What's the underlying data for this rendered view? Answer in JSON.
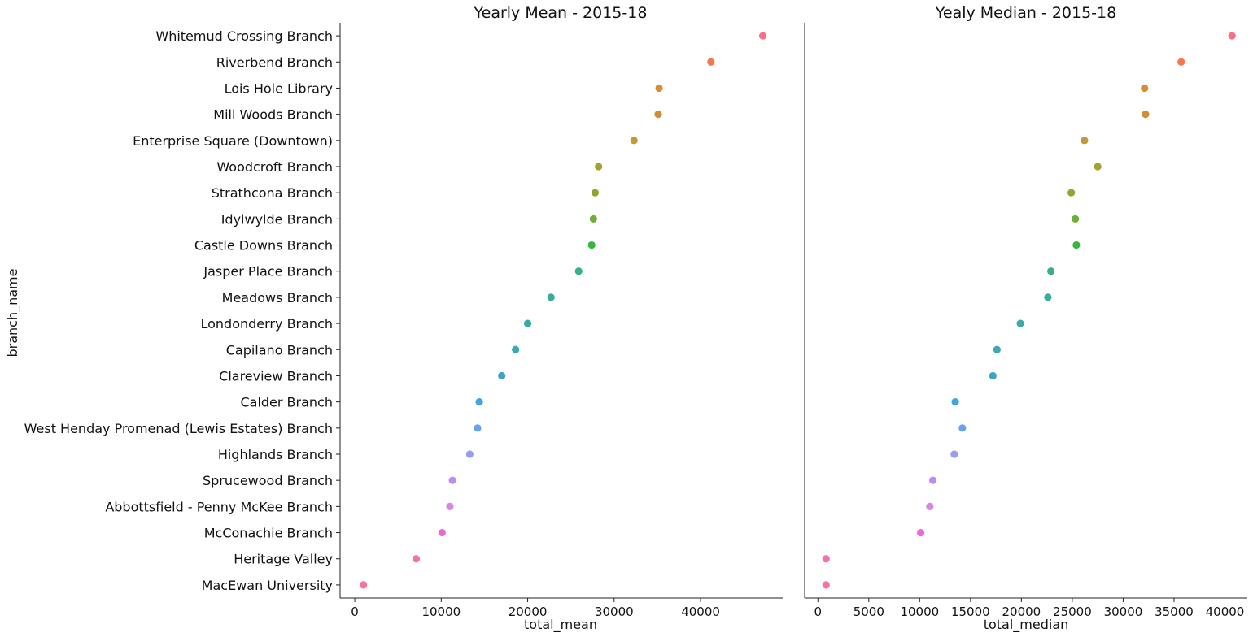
{
  "chart_data": [
    {
      "type": "scatter",
      "title": "Yearly Mean - 2015-18",
      "xlabel": "total_mean",
      "ylabel": "branch_name",
      "xlim": [
        -1700,
        49500
      ],
      "xticks": [
        0,
        10000,
        20000,
        30000,
        40000
      ],
      "xtick_labels": [
        "0",
        "10000",
        "20000",
        "30000",
        "40000"
      ],
      "grid": false,
      "categories": [
        "Whitemud Crossing Branch",
        "Riverbend Branch",
        "Lois Hole Library",
        "Mill Woods Branch",
        "Enterprise Square (Downtown)",
        "Woodcroft Branch",
        "Strathcona Branch",
        "Idylwylde Branch",
        "Castle Downs Branch",
        "Jasper Place Branch",
        "Meadows Branch",
        "Londonderry Branch",
        "Capilano Branch",
        "Clareview Branch",
        "Calder Branch",
        "West Henday Promenad (Lewis Estates) Branch",
        "Highlands Branch",
        "Sprucewood Branch",
        "Abbottsfield - Penny McKee Branch",
        "McConachie Branch",
        "Heritage Valley",
        "MacEwan University"
      ],
      "values": [
        47200,
        41200,
        35200,
        35100,
        32300,
        28200,
        27800,
        27600,
        27400,
        25900,
        22700,
        20000,
        18600,
        17000,
        14400,
        14200,
        13300,
        11300,
        11000,
        10100,
        7100,
        1000
      ],
      "colors": [
        "#f77189",
        "#f7754f",
        "#dd8a32",
        "#cf8f31",
        "#c29a31",
        "#a5a030",
        "#8ca731",
        "#6eb032",
        "#34b640",
        "#36b186",
        "#38ac9e",
        "#39aba6",
        "#3aa9b1",
        "#3ba6c4",
        "#41a3e0",
        "#67a1f1",
        "#979cf4",
        "#bb8df4",
        "#dc82e9",
        "#f066d5",
        "#f570b1",
        "#f772a0"
      ]
    },
    {
      "type": "scatter",
      "title": "Yealy Median - 2015-18",
      "xlabel": "total_median",
      "ylabel": "",
      "xlim": [
        -1300,
        42200
      ],
      "xticks": [
        0,
        5000,
        10000,
        15000,
        20000,
        25000,
        30000,
        35000,
        40000
      ],
      "xtick_labels": [
        "0",
        "5000",
        "10000",
        "15000",
        "20000",
        "25000",
        "30000",
        "35000",
        "40000"
      ],
      "grid": false,
      "categories": [
        "Whitemud Crossing Branch",
        "Riverbend Branch",
        "Lois Hole Library",
        "Mill Woods Branch",
        "Enterprise Square (Downtown)",
        "Woodcroft Branch",
        "Strathcona Branch",
        "Idylwylde Branch",
        "Castle Downs Branch",
        "Jasper Place Branch",
        "Meadows Branch",
        "Londonderry Branch",
        "Capilano Branch",
        "Clareview Branch",
        "Calder Branch",
        "West Henday Promenad (Lewis Estates) Branch",
        "Highlands Branch",
        "Sprucewood Branch",
        "Abbottsfield - Penny McKee Branch",
        "McConachie Branch",
        "Heritage Valley",
        "MacEwan University"
      ],
      "values": [
        40700,
        35700,
        32100,
        32200,
        26200,
        27500,
        24900,
        25300,
        25400,
        22900,
        22600,
        19900,
        17600,
        17200,
        13500,
        14200,
        13400,
        11300,
        11000,
        10100,
        800,
        800
      ],
      "colors": [
        "#f77189",
        "#f7754f",
        "#dd8a32",
        "#cf8f31",
        "#c29a31",
        "#a5a030",
        "#8ca731",
        "#6eb032",
        "#34b640",
        "#36b186",
        "#38ac9e",
        "#39aba6",
        "#3aa9b1",
        "#3ba6c4",
        "#41a3e0",
        "#67a1f1",
        "#979cf4",
        "#bb8df4",
        "#dc82e9",
        "#f066d5",
        "#f570b1",
        "#f772a0"
      ]
    }
  ]
}
